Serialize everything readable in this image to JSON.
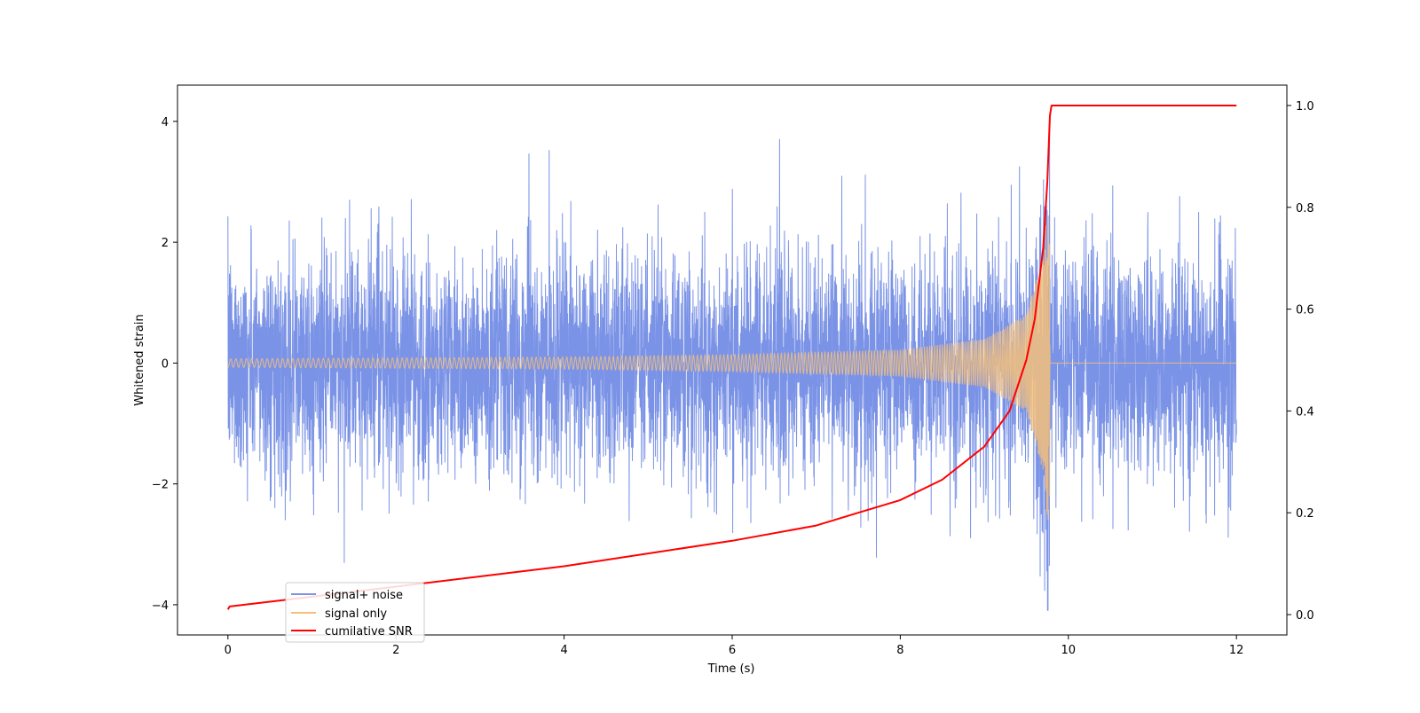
{
  "chart_data": {
    "type": "line",
    "title": "",
    "xlabel": "Time (s)",
    "ylabel": "Whitened strain",
    "y2label": "",
    "xlim": [
      -0.6,
      12.6
    ],
    "ylim": [
      -4.5,
      4.6
    ],
    "y2lim": [
      -0.04,
      1.04
    ],
    "xticks": [
      0,
      2,
      4,
      6,
      8,
      10,
      12
    ],
    "xtick_labels": [
      "0",
      "2",
      "4",
      "6",
      "8",
      "10",
      "12"
    ],
    "yticks": [
      -4,
      -2,
      0,
      2,
      4
    ],
    "ytick_labels": [
      "−4",
      "−2",
      "0",
      "2",
      "4"
    ],
    "y2ticks": [
      0.0,
      0.2,
      0.4,
      0.6,
      0.8,
      1.0
    ],
    "y2tick_labels": [
      "0.0",
      "0.2",
      "0.4",
      "0.6",
      "0.8",
      "1.0"
    ],
    "grid": false,
    "legend_position": "lower-left",
    "merger_time": 9.78,
    "series": [
      {
        "name": "signal+ noise",
        "color": "#7b93e6",
        "axis": "left",
        "description_values": {
          "noise_sigma": 0.9,
          "x_range": [
            0,
            12
          ]
        }
      },
      {
        "name": "signal only",
        "color": "#f5c07a",
        "axis": "left",
        "envelope": {
          "t": [
            0,
            4,
            6,
            8,
            9,
            9.5,
            9.7,
            9.78
          ],
          "amplitude": [
            0.07,
            0.1,
            0.14,
            0.22,
            0.4,
            0.8,
            1.8,
            3.0
          ]
        }
      },
      {
        "name": "cumilative SNR",
        "color": "#ff0000",
        "axis": "right",
        "x": [
          0,
          0.02,
          1,
          2,
          3,
          4,
          5,
          6,
          7,
          7.5,
          8,
          8.5,
          9,
          9.3,
          9.5,
          9.6,
          9.7,
          9.75,
          9.78,
          9.8,
          12
        ],
        "y": [
          0.01,
          0.016,
          0.035,
          0.055,
          0.075,
          0.095,
          0.12,
          0.145,
          0.175,
          0.2,
          0.225,
          0.265,
          0.33,
          0.4,
          0.5,
          0.58,
          0.72,
          0.85,
          0.98,
          1.0,
          1.0
        ]
      }
    ]
  }
}
